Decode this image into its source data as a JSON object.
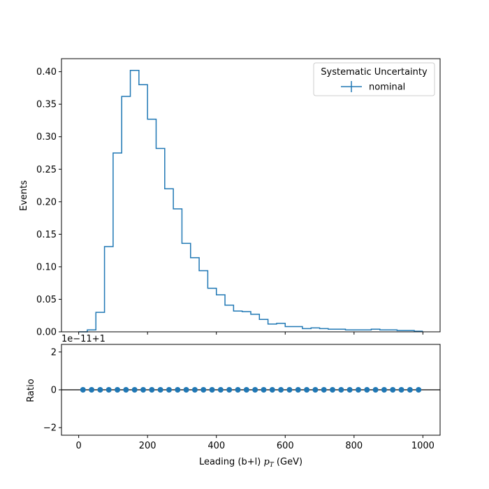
{
  "chart_data": {
    "type": "step-histogram-with-ratio",
    "top": {
      "ylabel": "Events",
      "ylim": [
        0.0,
        0.42
      ],
      "yticks": [
        0.0,
        0.05,
        0.1,
        0.15,
        0.2,
        0.25,
        0.3,
        0.35,
        0.4
      ],
      "ytick_labels": [
        "0.00",
        "0.05",
        "0.10",
        "0.15",
        "0.20",
        "0.25",
        "0.30",
        "0.35",
        "0.40"
      ],
      "legend": {
        "title": "Systematic Uncertainty",
        "position": "top-right",
        "entries": [
          "nominal"
        ]
      },
      "series": [
        {
          "name": "nominal",
          "color": "#1f77b4",
          "bin_edges": [
            0,
            25,
            50,
            75,
            100,
            125,
            150,
            175,
            200,
            225,
            250,
            275,
            300,
            325,
            350,
            375,
            400,
            425,
            450,
            475,
            500,
            525,
            550,
            575,
            600,
            625,
            650,
            675,
            700,
            725,
            750,
            775,
            800,
            825,
            850,
            875,
            900,
            925,
            950,
            975,
            1000
          ],
          "values": [
            0.0,
            0.003,
            0.03,
            0.131,
            0.275,
            0.362,
            0.402,
            0.38,
            0.327,
            0.282,
            0.22,
            0.189,
            0.136,
            0.114,
            0.094,
            0.067,
            0.057,
            0.041,
            0.032,
            0.031,
            0.027,
            0.019,
            0.012,
            0.013,
            0.008,
            0.008,
            0.005,
            0.006,
            0.005,
            0.004,
            0.004,
            0.003,
            0.003,
            0.003,
            0.004,
            0.003,
            0.003,
            0.002,
            0.002,
            0.001
          ]
        }
      ]
    },
    "bottom": {
      "ylabel": "Ratio",
      "offset_label": "1e−11+1",
      "ylim": [
        -2.4,
        2.4
      ],
      "yticks": [
        -2,
        0,
        2
      ],
      "ytick_labels": [
        "−2",
        "0",
        "2"
      ],
      "reference_line": 0,
      "points_x": [
        12.5,
        37.5,
        62.5,
        87.5,
        112.5,
        137.5,
        162.5,
        187.5,
        212.5,
        237.5,
        262.5,
        287.5,
        312.5,
        337.5,
        362.5,
        387.5,
        412.5,
        437.5,
        462.5,
        487.5,
        512.5,
        537.5,
        562.5,
        587.5,
        612.5,
        637.5,
        662.5,
        687.5,
        712.5,
        737.5,
        762.5,
        787.5,
        812.5,
        837.5,
        862.5,
        887.5,
        912.5,
        937.5,
        962.5,
        987.5
      ],
      "points_y": [
        0,
        0,
        0,
        0,
        0,
        0,
        0,
        0,
        0,
        0,
        0,
        0,
        0,
        0,
        0,
        0,
        0,
        0,
        0,
        0,
        0,
        0,
        0,
        0,
        0,
        0,
        0,
        0,
        0,
        0,
        0,
        0,
        0,
        0,
        0,
        0,
        0,
        0,
        0,
        0
      ],
      "color": "#1f77b4"
    },
    "xlabel": "Leading (b+l) ",
    "xlabel_symbol": "p",
    "xlabel_subscript": "T",
    "xlabel_unit": " (GeV)",
    "xlim": [
      -50,
      1050
    ],
    "xticks": [
      0,
      200,
      400,
      600,
      800,
      1000
    ],
    "xtick_labels": [
      "0",
      "200",
      "400",
      "600",
      "800",
      "1000"
    ]
  }
}
